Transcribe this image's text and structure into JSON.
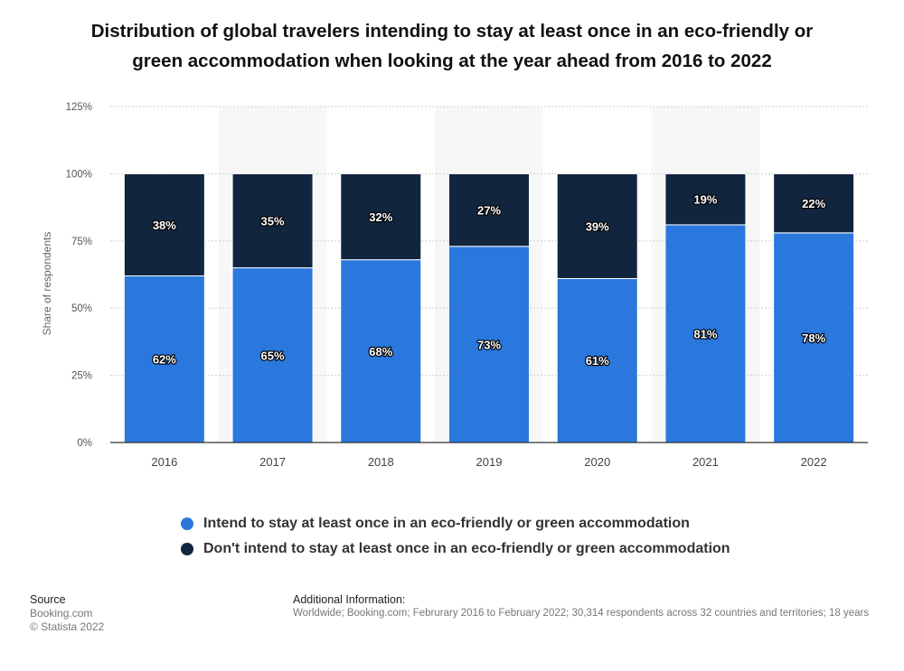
{
  "title_lines": [
    "Distribution of global travelers intending to stay at least once in an eco-friendly or",
    "green accommodation when looking at the year ahead from 2016 to 2022"
  ],
  "colors": {
    "intend": "#2A77DD",
    "dont": "#12253F"
  },
  "legend": [
    "Intend to stay at least once in an eco-friendly or green accommodation",
    "Don't intend to stay at least once in an eco-friendly or green accommodation"
  ],
  "chart_data": {
    "type": "bar",
    "stacked": true,
    "title": "Distribution of global travelers intending to stay at least once in an eco-friendly or green accommodation when looking at the year ahead from 2016 to 2022",
    "xlabel": "",
    "ylabel": "Share of respondents",
    "ylim": [
      0,
      125
    ],
    "yticks": [
      0,
      25,
      50,
      75,
      100,
      125
    ],
    "ytick_labels": [
      "0%",
      "25%",
      "50%",
      "75%",
      "100%",
      "125%"
    ],
    "categories": [
      "2016",
      "2017",
      "2018",
      "2019",
      "2020",
      "2021",
      "2022"
    ],
    "series": [
      {
        "name": "Intend to stay at least once in an eco-friendly or green accommodation",
        "values": [
          62,
          65,
          68,
          73,
          61,
          81,
          78
        ],
        "labels": [
          "62%",
          "65%",
          "68%",
          "73%",
          "61%",
          "81%",
          "78%"
        ]
      },
      {
        "name": "Don't intend to stay at least once in an eco-friendly or green accommodation",
        "values": [
          38,
          35,
          32,
          27,
          39,
          19,
          22
        ],
        "labels": [
          "38%",
          "35%",
          "32%",
          "27%",
          "39%",
          "19%",
          "22%"
        ]
      }
    ],
    "grid": true,
    "legend_position": "bottom"
  },
  "footer": {
    "source_header": "Source",
    "source_lines": [
      "Booking.com",
      "© Statista 2022"
    ],
    "info_header": "Additional Information:",
    "info_text": "Worldwide; Booking.com; Februrary 2016 to February 2022; 30,314 respondents across 32 countries and territories; 18 years"
  }
}
